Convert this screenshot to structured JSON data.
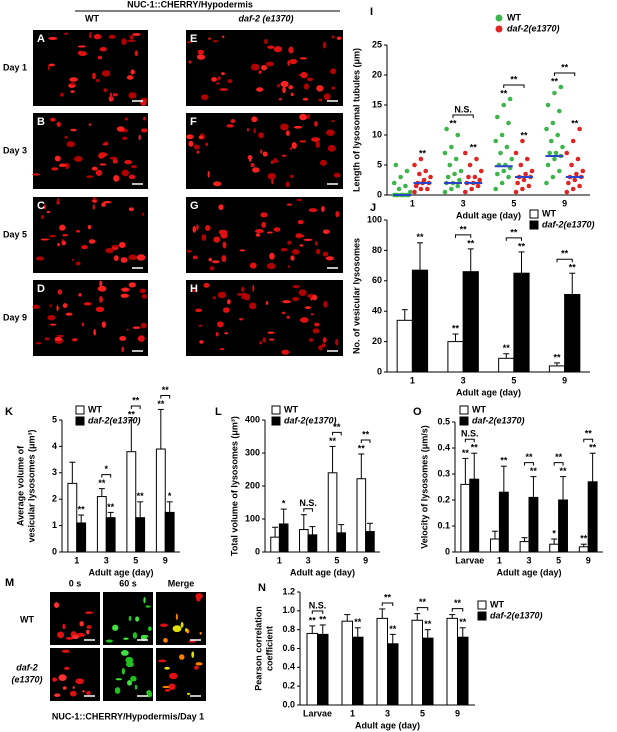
{
  "figure": {
    "header": "NUC-1::CHERRY/Hypodermis",
    "columns": [
      "WT",
      "daf-2 (e1370)"
    ],
    "rows": [
      "Day 1",
      "Day 3",
      "Day 5",
      "Day 9"
    ],
    "left_panels": [
      "A",
      "B",
      "C",
      "D"
    ],
    "right_panels": [
      "E",
      "F",
      "G",
      "H"
    ],
    "m_panel": {
      "panel": "M",
      "columns": [
        "0 s",
        "60 s",
        "Merge"
      ],
      "rows": [
        {
          "lines": [
            "WT"
          ]
        },
        {
          "lines": [
            "daf-2",
            "(e1370)"
          ]
        }
      ],
      "caption": "NUC-1::CHERRY/Hypodermis/Day 1"
    }
  },
  "chart_data": [
    {
      "type": "strip",
      "panel": "I",
      "ylabel": [
        "Length of lysosomal tubules (μm)"
      ],
      "xlabel": "Adult age (day)",
      "categories": [
        "1",
        "3",
        "5",
        "9"
      ],
      "ylim": [
        0,
        25
      ],
      "yticks": [
        0,
        5,
        10,
        15,
        20,
        25
      ],
      "median_color": "#2b44c8",
      "series": [
        {
          "name": "WT",
          "color": "#3cb54a",
          "values": [
            [
              0,
              0,
              0,
              0,
              0,
              0,
              0,
              0,
              0.5,
              1,
              1.5,
              2,
              3,
              4,
              5
            ],
            [
              0.5,
              1,
              1.5,
              2,
              2,
              2.5,
              3,
              3.5,
              4,
              5,
              6,
              7,
              8,
              10,
              11
            ],
            [
              1,
              2,
              3,
              3.5,
              4,
              4.5,
              5,
              5,
              6,
              7,
              8,
              9,
              10,
              12,
              13,
              15,
              16
            ],
            [
              2,
              3,
              4,
              5,
              6,
              6.5,
              7,
              7,
              8,
              9,
              10,
              11,
              12,
              14,
              15,
              17,
              18
            ]
          ],
          "medians": [
            0,
            2,
            4.8,
            6.5
          ],
          "markers": [
            null,
            "**",
            "**",
            "**"
          ]
        },
        {
          "name": "daf-2(e1370)",
          "color": "#e02424",
          "values": [
            [
              0.5,
              1,
              1,
              1.5,
              2,
              2,
              2,
              2.5,
              3,
              3.5,
              4,
              5,
              6
            ],
            [
              0.5,
              1,
              1.5,
              2,
              2,
              2.5,
              3,
              3,
              4,
              5,
              6,
              7
            ],
            [
              0.5,
              1,
              1.5,
              2,
              2.5,
              3,
              3,
              3.5,
              4,
              5,
              6,
              7,
              9
            ],
            [
              0.5,
              1,
              1.5,
              2,
              2.5,
              3,
              3,
              3.5,
              4,
              5,
              6,
              7,
              9,
              11
            ]
          ],
          "medians": [
            2,
            2,
            3,
            3
          ],
          "markers": [
            "**",
            "**",
            "**",
            "**"
          ]
        }
      ],
      "bracket_labels": [
        null,
        "N.S.",
        "**",
        "**"
      ]
    },
    {
      "type": "bar",
      "panel": "J",
      "ylabel": [
        "No. of vesicular lysosomes"
      ],
      "xlabel": "Adult age (day)",
      "categories": [
        "1",
        "3",
        "5",
        "9"
      ],
      "ylim": [
        0,
        100
      ],
      "yticks": [
        0,
        20,
        40,
        60,
        80,
        100
      ],
      "series": [
        {
          "name": "WT",
          "color": "#ffffff",
          "values": [
            34,
            20,
            9,
            4
          ],
          "errors": [
            7,
            5,
            3,
            2
          ],
          "markers": [
            null,
            "**",
            "**",
            "**"
          ]
        },
        {
          "name": "daf-2(e1370)",
          "color": "#000000",
          "values": [
            67,
            66,
            65,
            51
          ],
          "errors": [
            18,
            15,
            14,
            14
          ],
          "markers": [
            "**",
            "**",
            "**",
            "**"
          ]
        }
      ],
      "bracket_labels": [
        null,
        "**",
        "**",
        "**"
      ]
    },
    {
      "type": "bar",
      "panel": "K",
      "ylabel": [
        "Average volume of",
        "vesicular lysosomes (μm³)"
      ],
      "xlabel": "Adult age (day)",
      "categories": [
        "1",
        "3",
        "5",
        "9"
      ],
      "ylim": [
        0,
        5
      ],
      "yticks": [
        0,
        1,
        2,
        3,
        4,
        5
      ],
      "series": [
        {
          "name": "WT",
          "color": "#ffffff",
          "values": [
            2.6,
            2.1,
            3.8,
            3.9
          ],
          "errors": [
            0.8,
            0.3,
            1.2,
            1.5
          ],
          "markers": [
            null,
            "**",
            "**",
            "**"
          ]
        },
        {
          "name": "daf-2(e1370)",
          "color": "#000000",
          "values": [
            1.1,
            1.3,
            1.3,
            1.5
          ],
          "errors": [
            0.3,
            0.2,
            0.6,
            0.4
          ],
          "markers": [
            "**",
            "**",
            "**",
            "*"
          ]
        }
      ],
      "bracket_labels": [
        null,
        "*",
        "**",
        "**"
      ]
    },
    {
      "type": "bar",
      "panel": "L",
      "ylabel": [
        "Total volume of lysosomes (μm³)"
      ],
      "xlabel": "Adult age (day)",
      "categories": [
        "1",
        "3",
        "5",
        "9"
      ],
      "ylim": [
        0,
        400
      ],
      "yticks": [
        0,
        100,
        200,
        300,
        400
      ],
      "series": [
        {
          "name": "WT",
          "color": "#ffffff",
          "values": [
            45,
            68,
            240,
            222
          ],
          "errors": [
            30,
            45,
            80,
            75
          ],
          "markers": [
            null,
            null,
            "**",
            "**"
          ]
        },
        {
          "name": "daf-2(e1370)",
          "color": "#000000",
          "values": [
            85,
            52,
            58,
            62
          ],
          "errors": [
            45,
            25,
            25,
            25
          ],
          "markers": [
            "*",
            null,
            null,
            null
          ]
        }
      ],
      "bracket_labels": [
        null,
        "N.S.",
        "**",
        "**"
      ]
    },
    {
      "type": "bar",
      "panel": "O",
      "ylabel": [
        "Velocity of lysosomes (μm/s)"
      ],
      "xlabel": "Adult age (day)",
      "categories": [
        "Larvae",
        "1",
        "3",
        "5",
        "9"
      ],
      "ylim": [
        0,
        0.5
      ],
      "yticks": [
        0,
        0.1,
        0.2,
        0.3,
        0.4,
        0.5
      ],
      "series": [
        {
          "name": "WT",
          "color": "#ffffff",
          "values": [
            0.26,
            0.05,
            0.04,
            0.03,
            0.02
          ],
          "errors": [
            0.1,
            0.03,
            0.015,
            0.02,
            0.01
          ],
          "markers": [
            "**",
            null,
            null,
            "*",
            "**"
          ]
        },
        {
          "name": "daf-2(e1370)",
          "color": "#000000",
          "values": [
            0.28,
            0.23,
            0.21,
            0.2,
            0.27
          ],
          "errors": [
            0.1,
            0.1,
            0.08,
            0.09,
            0.11
          ],
          "markers": [
            "**",
            "**",
            "**",
            "**",
            "**"
          ]
        }
      ],
      "bracket_labels": [
        "N.S.",
        null,
        "**",
        "**",
        "**"
      ]
    },
    {
      "type": "bar",
      "panel": "N",
      "ylabel": [
        "Pearson correlation",
        "coefficient"
      ],
      "xlabel": "Adult age (day)",
      "categories": [
        "Larvae",
        "1",
        "3",
        "5",
        "9"
      ],
      "ylim": [
        0,
        1.2
      ],
      "yticks": [
        {
          "value": 0,
          "label": "0.0"
        },
        0.2,
        0.4,
        0.6,
        0.8,
        {
          "value": 1,
          "label": "1.0"
        },
        1.2
      ],
      "series": [
        {
          "name": "WT",
          "color": "#ffffff",
          "values": [
            0.76,
            0.89,
            0.92,
            0.9,
            0.92
          ],
          "errors": [
            0.08,
            0.07,
            0.1,
            0.07,
            0.04
          ],
          "markers": [
            "**",
            null,
            null,
            null,
            null
          ]
        },
        {
          "name": "daf-2(e1370)",
          "color": "#000000",
          "values": [
            0.75,
            0.72,
            0.65,
            0.71,
            0.72
          ],
          "errors": [
            0.1,
            0.1,
            0.1,
            0.09,
            0.1
          ],
          "markers": [
            "**",
            "**",
            "**",
            "**",
            "**"
          ]
        }
      ],
      "bracket_labels": [
        "N.S.",
        null,
        "**",
        "**",
        "**"
      ]
    }
  ]
}
